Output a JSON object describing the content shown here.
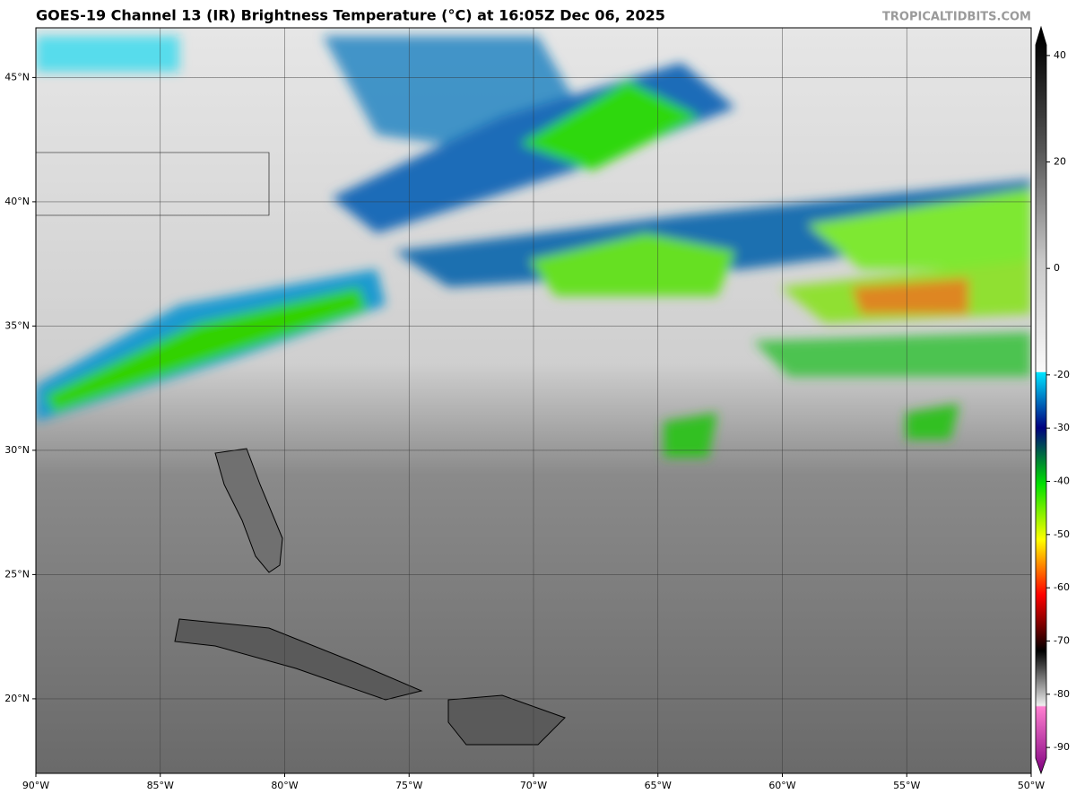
{
  "title": "GOES-19 Channel 13 (IR) Brightness Temperature (°C) at 16:05Z Dec 06, 2025",
  "watermark": "TROPICALTIDBITS.COM",
  "map": {
    "lonlim": [
      -90,
      -50
    ],
    "latlim": [
      17,
      47
    ],
    "grid": true,
    "lonticks": [
      {
        "value": -90,
        "label": "90°W"
      },
      {
        "value": -85,
        "label": "85°W"
      },
      {
        "value": -80,
        "label": "80°W"
      },
      {
        "value": -75,
        "label": "75°W"
      },
      {
        "value": -70,
        "label": "70°W"
      },
      {
        "value": -65,
        "label": "65°W"
      },
      {
        "value": -60,
        "label": "60°W"
      },
      {
        "value": -55,
        "label": "55°W"
      },
      {
        "value": -50,
        "label": "50°W"
      }
    ],
    "latticks": [
      {
        "value": 20,
        "label": "20°N"
      },
      {
        "value": 25,
        "label": "25°N"
      },
      {
        "value": 30,
        "label": "30°N"
      },
      {
        "value": 35,
        "label": "35°N"
      },
      {
        "value": 40,
        "label": "40°N"
      },
      {
        "value": 45,
        "label": "45°N"
      }
    ]
  },
  "colorbar": {
    "lim": [
      -92,
      42
    ],
    "ticks": [
      40,
      20,
      0,
      -20,
      -30,
      -40,
      -50,
      -60,
      -70,
      -80,
      -90
    ]
  }
}
